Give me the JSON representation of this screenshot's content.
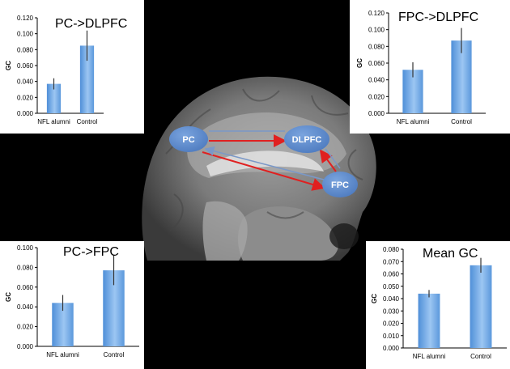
{
  "brain_diagram": {
    "nodes": [
      "PC",
      "DLPFC",
      "FPC"
    ],
    "arrow_colors": {
      "red": "#e02020",
      "blue": "#7a98c8"
    },
    "node_color": "#5a86c7"
  },
  "chart_data": [
    {
      "type": "bar",
      "title": "PC->DLPFC",
      "ylabel": "GC",
      "categories": [
        "NFL alumni",
        "Control"
      ],
      "values": [
        0.037,
        0.085
      ],
      "errors": [
        0.007,
        0.019
      ],
      "ylim": [
        0,
        0.12
      ],
      "yticks": [
        "0.000",
        "0.020",
        "0.040",
        "0.060",
        "0.080",
        "0.100",
        "0.120"
      ],
      "bar_color": "#6ea8e6",
      "grid": false
    },
    {
      "type": "bar",
      "title": "FPC->DLPFC",
      "ylabel": "GC",
      "categories": [
        "NFL alumni",
        "Control"
      ],
      "values": [
        0.052,
        0.087
      ],
      "errors": [
        0.009,
        0.015
      ],
      "ylim": [
        0,
        0.12
      ],
      "yticks": [
        "0.000",
        "0.020",
        "0.040",
        "0.060",
        "0.080",
        "0.100",
        "0.120"
      ],
      "bar_color": "#6ea8e6",
      "grid": false
    },
    {
      "type": "bar",
      "title": "PC->FPC",
      "ylabel": "GC",
      "categories": [
        "NFL alumni",
        "Control"
      ],
      "values": [
        0.044,
        0.077
      ],
      "errors": [
        0.008,
        0.015
      ],
      "ylim": [
        0,
        0.1
      ],
      "yticks": [
        "0.000",
        "0.020",
        "0.040",
        "0.060",
        "0.080",
        "0.100"
      ],
      "bar_color": "#6ea8e6",
      "grid": false
    },
    {
      "type": "bar",
      "title": "Mean GC",
      "ylabel": "GC",
      "categories": [
        "NFL alumni",
        "Control"
      ],
      "values": [
        0.044,
        0.067
      ],
      "errors": [
        0.003,
        0.006
      ],
      "ylim": [
        0,
        0.08
      ],
      "yticks": [
        "0.000",
        "0.010",
        "0.020",
        "0.030",
        "0.040",
        "0.050",
        "0.060",
        "0.070",
        "0.080"
      ],
      "bar_color": "#6ea8e6",
      "grid": false
    }
  ]
}
